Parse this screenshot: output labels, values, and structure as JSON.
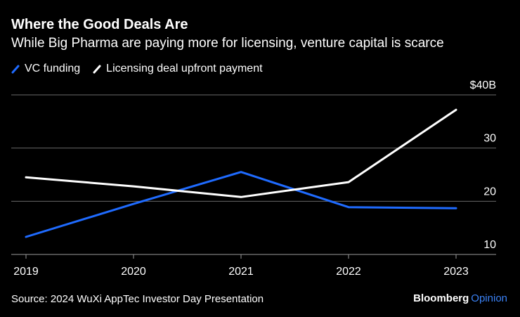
{
  "brand": {
    "name": "Bloomberg",
    "section": "Opinion"
  },
  "source": "Source: 2024 WuXi AppTec Investor Day Presentation",
  "colors": {
    "vc": "#1f6bff",
    "licensing": "#ffffff",
    "grid": "#6a6a6a"
  },
  "chart_data": {
    "type": "line",
    "title": "Where the Good Deals Are",
    "subtitle": "While Big Pharma are paying more for licensing, venture capital is scarce",
    "x": [
      "2019",
      "2020",
      "2021",
      "2022",
      "2023"
    ],
    "series": [
      {
        "name": "VC funding",
        "values": [
          13.3,
          19.5,
          25.5,
          18.9,
          18.7
        ]
      },
      {
        "name": "Licensing deal upfront payment",
        "values": [
          24.5,
          22.8,
          20.8,
          23.6,
          37.2
        ]
      }
    ],
    "y_ticks": [
      "10",
      "20",
      "30",
      "$40B"
    ],
    "y_tick_values": [
      10,
      20,
      30,
      40
    ],
    "ylim": [
      10,
      40
    ],
    "xlabel": "",
    "ylabel": "",
    "grid": true,
    "legend_position": "top-left"
  }
}
